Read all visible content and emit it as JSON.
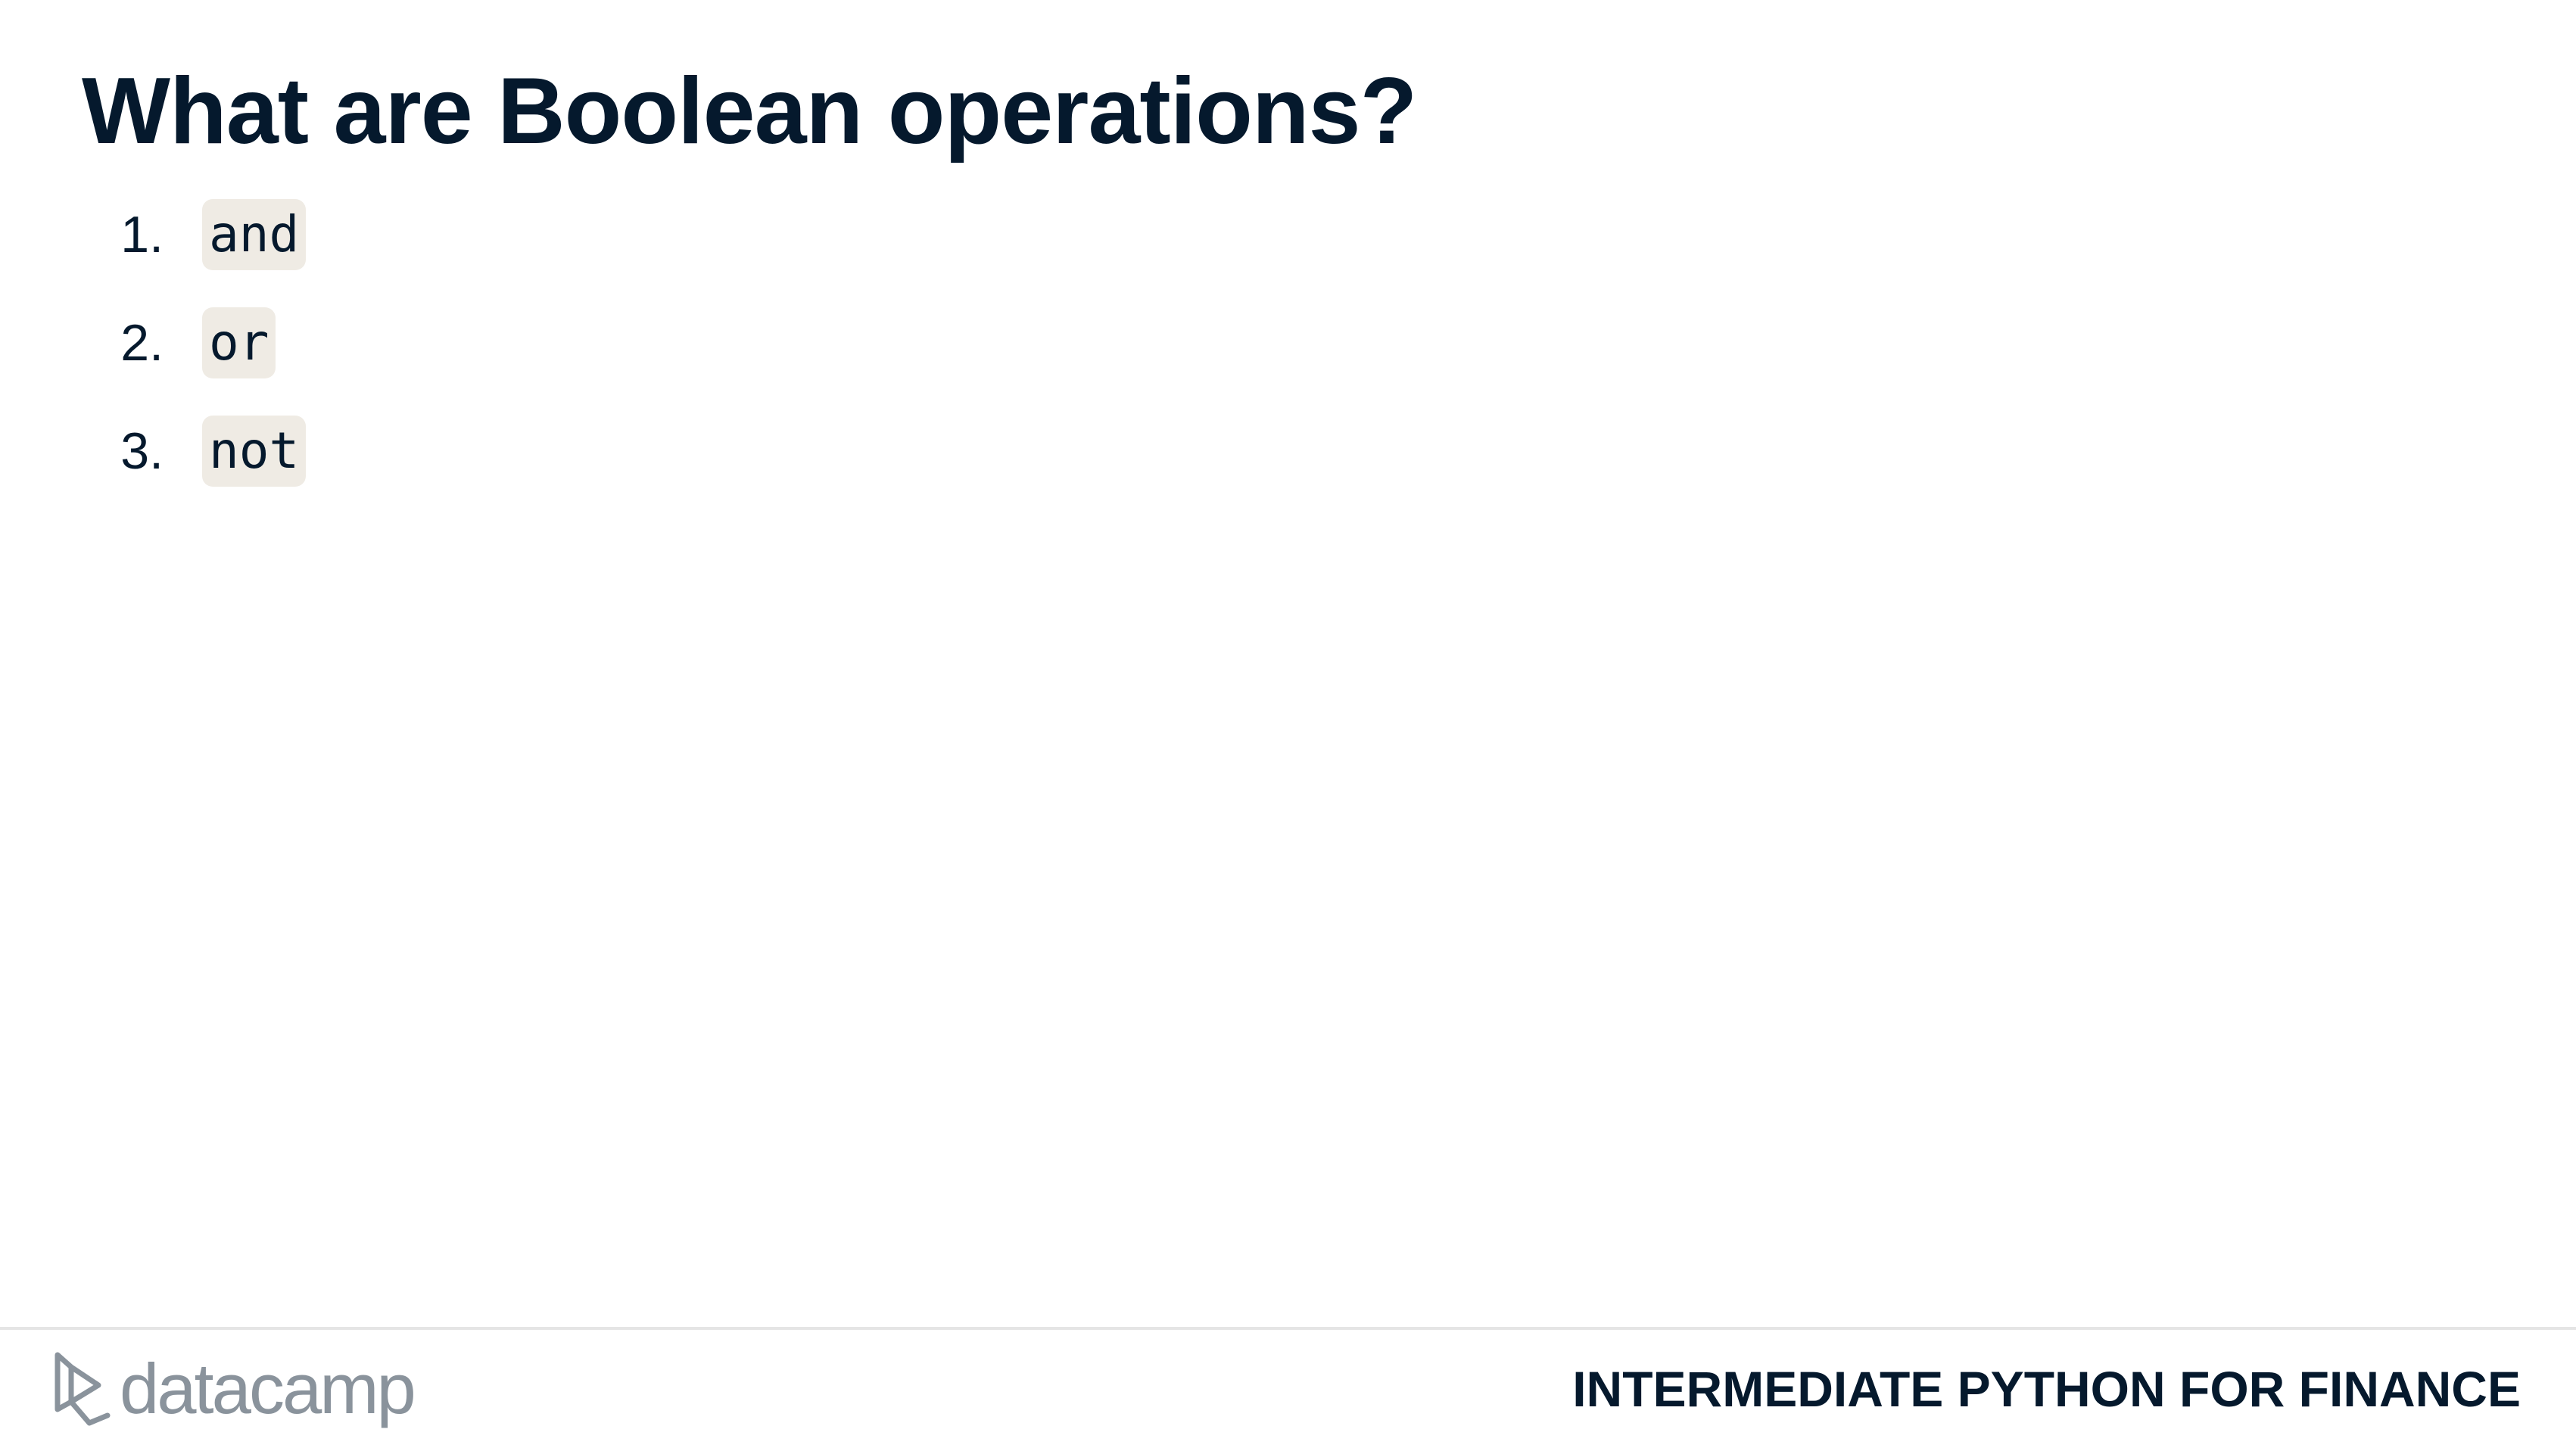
{
  "slide": {
    "title": "What are Boolean operations?",
    "operations": [
      {
        "number": "1.",
        "code": "and"
      },
      {
        "number": "2.",
        "code": "or"
      },
      {
        "number": "3.",
        "code": "not"
      }
    ]
  },
  "footer": {
    "brand_name": "datacamp",
    "brand_icon": "datacamp-logo-icon",
    "course_title": "INTERMEDIATE PYTHON FOR FINANCE"
  },
  "colors": {
    "text": "#05192d",
    "code_background": "#efebe4",
    "brand_gray": "#8a939c",
    "divider": "#e5e5e5"
  }
}
